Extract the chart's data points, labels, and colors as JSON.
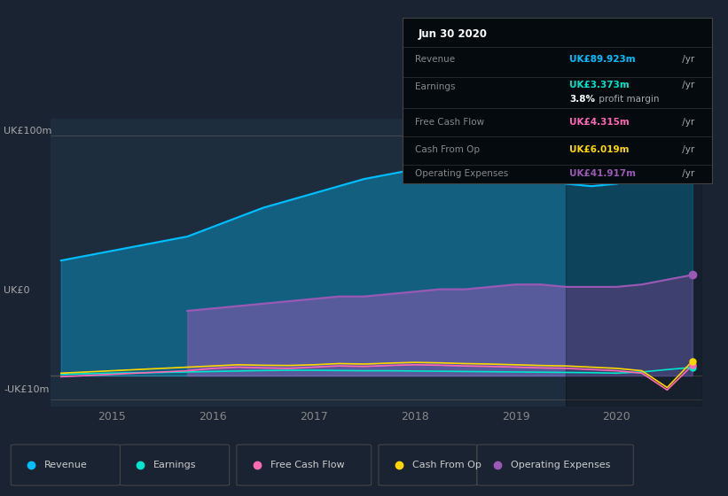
{
  "background_color": "#1a2332",
  "plot_bg_color": "#1e2d3d",
  "ylabel_top": "UK£100m",
  "ylabel_zero": "UK£0",
  "ylabel_neg": "-UK£10m",
  "revenue_color": "#00bfff",
  "earnings_color": "#00e5cc",
  "free_cash_flow_color": "#ff69b4",
  "cash_from_op_color": "#ffd700",
  "op_expenses_color": "#9b59b6",
  "legend_items": [
    "Revenue",
    "Earnings",
    "Free Cash Flow",
    "Cash From Op",
    "Operating Expenses"
  ],
  "legend_colors": [
    "#00bfff",
    "#00e5cc",
    "#ff69b4",
    "#ffd700",
    "#9b59b6"
  ],
  "info_title": "Jun 30 2020",
  "info_revenue_label": "Revenue",
  "info_revenue_val": "UK£89.923m",
  "info_earnings_label": "Earnings",
  "info_earnings_val": "UK£3.373m",
  "info_margin": "3.8%",
  "info_margin_text": " profit margin",
  "info_fcf_label": "Free Cash Flow",
  "info_fcf_val": "UK£4.315m",
  "info_cashop_label": "Cash From Op",
  "info_cashop_val": "UK£6.019m",
  "info_opex_label": "Operating Expenses",
  "info_opex_val": "UK£41.917m",
  "yr_suffix": " /yr"
}
